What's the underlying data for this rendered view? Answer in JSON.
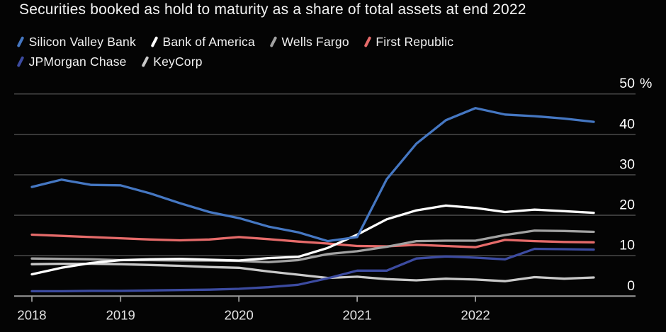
{
  "title": "Securities booked as hold to maturity as a share of total assets at end 2022",
  "legend": {
    "items": [
      {
        "label": "Silicon Valley Bank",
        "color": "#4577c2"
      },
      {
        "label": "Bank of America",
        "color": "#ffffff"
      },
      {
        "label": "Wells Fargo",
        "color": "#a2a2a2"
      },
      {
        "label": "First Republic",
        "color": "#e66b6a"
      },
      {
        "label": "JPMorgan Chase",
        "color": "#3c4ba0"
      },
      {
        "label": "KeyCorp",
        "color": "#c9c9c9"
      }
    ]
  },
  "chart_data": {
    "type": "line",
    "title": "Securities booked as hold to maturity as a share of total assets at end 2022",
    "x_unit": "decimal_year_quarter_end",
    "x": [
      2018.25,
      2018.5,
      2018.75,
      2019.0,
      2019.25,
      2019.5,
      2019.75,
      2020.0,
      2020.25,
      2020.5,
      2020.75,
      2021.0,
      2021.25,
      2021.5,
      2021.75,
      2022.0,
      2022.25,
      2022.5,
      2022.75,
      2023.0
    ],
    "series": [
      {
        "name": "Silicon Valley Bank",
        "color": "#4577c2",
        "values": [
          27.0,
          28.8,
          27.5,
          27.4,
          25.4,
          23.0,
          20.8,
          19.3,
          17.2,
          15.8,
          13.6,
          14.6,
          28.9,
          37.7,
          43.5,
          46.5,
          44.9,
          44.5,
          43.9,
          43.1
        ]
      },
      {
        "name": "Bank of America",
        "color": "#ffffff",
        "values": [
          5.4,
          7.0,
          8.2,
          8.9,
          9.1,
          9.2,
          9.0,
          8.8,
          9.4,
          9.7,
          11.9,
          15.2,
          19.0,
          21.2,
          22.4,
          21.8,
          20.8,
          21.4,
          21.0,
          20.6
        ]
      },
      {
        "name": "Wells Fargo",
        "color": "#a2a2a2",
        "values": [
          9.3,
          9.2,
          9.1,
          8.9,
          8.9,
          8.8,
          8.8,
          8.7,
          8.4,
          8.9,
          10.4,
          11.1,
          12.2,
          13.6,
          13.7,
          13.7,
          15.1,
          16.2,
          16.1,
          15.9
        ]
      },
      {
        "name": "First Republic",
        "color": "#e66b6a",
        "values": [
          15.2,
          14.9,
          14.6,
          14.3,
          14.0,
          13.8,
          14.0,
          14.6,
          14.1,
          13.5,
          13.0,
          12.4,
          12.3,
          12.7,
          12.4,
          12.1,
          13.9,
          13.6,
          13.4,
          13.3
        ]
      },
      {
        "name": "JPMorgan Chase",
        "color": "#3c4ba0",
        "values": [
          1.2,
          1.2,
          1.3,
          1.3,
          1.4,
          1.5,
          1.6,
          1.8,
          2.2,
          2.8,
          4.4,
          6.3,
          6.3,
          9.3,
          9.8,
          9.5,
          9.1,
          11.7,
          11.6,
          11.5
        ]
      },
      {
        "name": "KeyCorp",
        "color": "#c9c9c9",
        "values": [
          7.9,
          8.0,
          8.0,
          7.9,
          7.7,
          7.5,
          7.2,
          7.0,
          6.1,
          5.3,
          4.5,
          4.8,
          4.2,
          3.9,
          4.3,
          4.1,
          3.7,
          4.7,
          4.3,
          4.6
        ]
      }
    ],
    "yticks": [
      {
        "value": 0,
        "label": "0"
      },
      {
        "value": 10,
        "label": "10"
      },
      {
        "value": 20,
        "label": "20"
      },
      {
        "value": 30,
        "label": "30"
      },
      {
        "value": 40,
        "label": "40"
      },
      {
        "value": 50,
        "label": "50",
        "suffix": "%"
      }
    ],
    "xticks": [
      {
        "t": 2018.25,
        "label": "2018"
      },
      {
        "t": 2019,
        "label": "2019"
      },
      {
        "t": 2020,
        "label": "2020"
      },
      {
        "t": 2021,
        "label": "2021"
      },
      {
        "t": 2022,
        "label": "2022"
      }
    ],
    "ylim": [
      0,
      50
    ],
    "grid": true,
    "legend_position": "top-left"
  },
  "colors": {
    "background": "#040404",
    "grid": "#454545",
    "baseline": "#9a9a9a",
    "tick": "#9a9a9a",
    "y_label": "#ffffff",
    "x_label": "#e4e4e4"
  }
}
